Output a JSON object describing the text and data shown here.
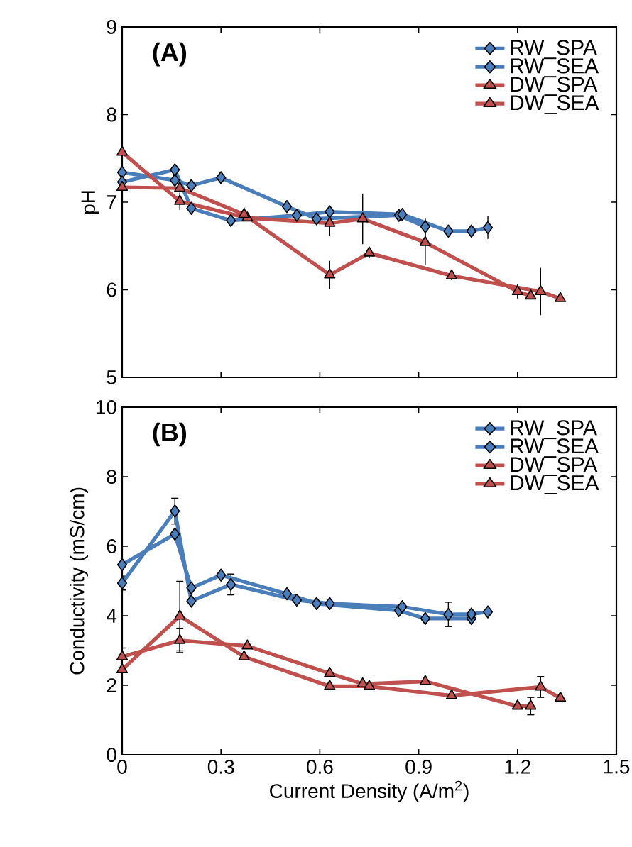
{
  "chart_data": [
    {
      "type": "line",
      "title": "(A)",
      "ylabel": "pH",
      "xlim": [
        0,
        1.5
      ],
      "xticks": [
        0,
        0.3,
        0.6,
        0.9,
        1.2,
        1.5
      ],
      "ylim": [
        5,
        9
      ],
      "yticks": [
        5,
        6,
        7,
        8,
        9
      ],
      "tick_labels": "y",
      "legend": "top right",
      "grid": false,
      "series": [
        {
          "name": "RW_SPA",
          "color": "#4a7ebb",
          "marker": "diamond",
          "x": [
            0,
            0.16,
            0.21,
            0.3,
            0.5,
            0.59,
            0.84,
            0.92
          ],
          "values": [
            7.34,
            7.25,
            7.19,
            7.28,
            6.95,
            6.81,
            6.85,
            6.72
          ],
          "errors": [
            null,
            null,
            null,
            null,
            null,
            null,
            null,
            0.1
          ]
        },
        {
          "name": "RW_SEA",
          "color": "#4a7ebb",
          "marker": "diamond",
          "x": [
            0,
            0.16,
            0.21,
            0.33,
            0.53,
            0.63,
            0.85,
            0.99,
            1.06,
            1.11
          ],
          "values": [
            7.23,
            7.37,
            6.93,
            6.79,
            6.85,
            6.89,
            6.86,
            6.67,
            6.67,
            6.71
          ],
          "errors": [
            null,
            null,
            0.06,
            0.05,
            null,
            null,
            null,
            null,
            null,
            0.13
          ]
        },
        {
          "name": "DW_SPA",
          "color": "#c0504d",
          "marker": "triangle",
          "x": [
            0,
            0.175,
            0.38,
            0.63,
            0.73,
            0.92,
            1.2,
            1.24
          ],
          "values": [
            7.57,
            7.01,
            6.82,
            6.76,
            6.81,
            6.54,
            5.98,
            5.93
          ],
          "errors": [
            0.06,
            0.1,
            null,
            0.14,
            0.29,
            0.26,
            0.08,
            null
          ]
        },
        {
          "name": "DW_SEA",
          "color": "#c0504d",
          "marker": "triangle",
          "x": [
            0,
            0.175,
            0.37,
            0.63,
            0.75,
            1.0,
            1.27,
            1.33
          ],
          "values": [
            7.17,
            7.16,
            6.86,
            6.17,
            6.42,
            6.16,
            5.98,
            5.9
          ],
          "errors": [
            null,
            null,
            0.08,
            0.16,
            0.06,
            0.05,
            0.27,
            null
          ]
        }
      ]
    },
    {
      "type": "line",
      "title": "(B)",
      "xlabel": "Current Density (A/m$^{2}$)",
      "ylabel": "Conductivity (mS/cm)",
      "xlim": [
        0,
        1.5
      ],
      "xticks": [
        0,
        0.3,
        0.6,
        0.9,
        1.2,
        1.5
      ],
      "ylim": [
        0,
        10
      ],
      "yticks": [
        0,
        2,
        4,
        6,
        8,
        10
      ],
      "legend": "top right",
      "grid": false,
      "series": [
        {
          "name": "RW_SPA",
          "color": "#4a7ebb",
          "marker": "diamond",
          "x": [
            0,
            0.16,
            0.21,
            0.3,
            0.5,
            0.59,
            0.84,
            0.92,
            1.06
          ],
          "values": [
            5.47,
            6.35,
            4.8,
            5.17,
            4.63,
            4.35,
            4.15,
            3.92,
            3.92
          ]
        },
        {
          "name": "RW_SEA",
          "color": "#4a7ebb",
          "marker": "diamond",
          "x": [
            0,
            0.16,
            0.21,
            0.33,
            0.53,
            0.63,
            0.85,
            0.99,
            1.06,
            1.11
          ],
          "values": [
            4.94,
            7.01,
            4.42,
            4.9,
            4.45,
            4.35,
            4.26,
            4.04,
            4.05,
            4.11
          ],
          "errors": [
            0.2,
            0.37,
            null,
            0.3,
            null,
            null,
            null,
            0.35,
            null,
            null
          ]
        },
        {
          "name": "DW_SPA",
          "color": "#c0504d",
          "marker": "triangle",
          "x": [
            0,
            0.175,
            0.38,
            0.63,
            0.73,
            0.92,
            1.2,
            1.24
          ],
          "values": [
            2.82,
            3.29,
            3.13,
            2.34,
            2.04,
            2.11,
            1.4,
            1.4
          ],
          "errors": [
            0.25,
            0.35,
            null,
            null,
            null,
            null,
            null,
            0.25
          ]
        },
        {
          "name": "DW_SEA",
          "color": "#c0504d",
          "marker": "triangle",
          "x": [
            0,
            0.175,
            0.37,
            0.63,
            0.75,
            1.0,
            1.27,
            1.33
          ],
          "values": [
            2.45,
            3.99,
            2.82,
            1.97,
            1.97,
            1.7,
            1.95,
            1.63
          ],
          "errors": [
            null,
            1.0,
            null,
            null,
            null,
            null,
            0.3,
            null
          ]
        }
      ]
    }
  ]
}
